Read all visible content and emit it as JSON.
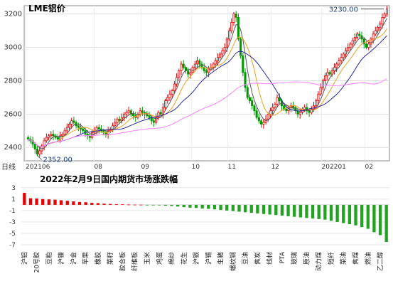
{
  "chart_data": [
    {
      "type": "candlestick",
      "title": "LME铝价",
      "frame_label": "日线",
      "x_tick_labels": [
        "202106",
        "08",
        "09",
        "10",
        "11",
        "12",
        "202201",
        "02"
      ],
      "y_ticks": [
        2400,
        2600,
        2800,
        3000,
        3200
      ],
      "ylim": [
        2320,
        3250
      ],
      "grid": true,
      "annotations": [
        {
          "label": "2352.00",
          "value": 2352,
          "anchor": "low"
        },
        {
          "label": "3230.00",
          "value": 3230,
          "anchor": "high"
        }
      ],
      "colors": {
        "up": "#e60000",
        "down": "#009900",
        "ma5": "#555555",
        "ma10": "#f0a020",
        "ma20": "#2a2aa0",
        "ma60": "#ff80ff"
      },
      "series_close": [
        2450,
        2440,
        2420,
        2390,
        2360,
        2380,
        2410,
        2440,
        2460,
        2470,
        2480,
        2470,
        2460,
        2450,
        2470,
        2480,
        2500,
        2520,
        2540,
        2560,
        2550,
        2530,
        2520,
        2510,
        2500,
        2480,
        2470,
        2460,
        2490,
        2500,
        2520,
        2510,
        2500,
        2490,
        2480,
        2500,
        2510,
        2530,
        2550,
        2570,
        2560,
        2580,
        2600,
        2610,
        2620,
        2600,
        2590,
        2580,
        2600,
        2620,
        2610,
        2600,
        2590,
        2580,
        2560,
        2550,
        2580,
        2610,
        2600,
        2640,
        2680,
        2700,
        2720,
        2740,
        2780,
        2820,
        2860,
        2900,
        2880,
        2860,
        2840,
        2850,
        2880,
        2900,
        2920,
        2900,
        2880,
        2860,
        2850,
        2870,
        2880,
        2900,
        2920,
        2940,
        2960,
        2980,
        3000,
        3050,
        3100,
        3150,
        3200,
        3180,
        3050,
        2950,
        2850,
        2760,
        2700,
        2680,
        2650,
        2620,
        2580,
        2560,
        2540,
        2550,
        2570,
        2600,
        2620,
        2640,
        2660,
        2700,
        2680,
        2650,
        2630,
        2620,
        2640,
        2650,
        2640,
        2620,
        2600,
        2610,
        2630,
        2640,
        2620,
        2610,
        2630,
        2650,
        2680,
        2720,
        2760,
        2800,
        2830,
        2850,
        2840,
        2860,
        2880,
        2900,
        2920,
        2940,
        2960,
        2980,
        3000,
        3020,
        3040,
        3060,
        3080,
        3070,
        3050,
        3020,
        3000,
        3020,
        3050,
        3080,
        3100,
        3120,
        3140,
        3180,
        3200,
        3230
      ],
      "volatility_note_free": true
    },
    {
      "type": "bar",
      "title": "2022年2月9日国内期货市场涨跌幅",
      "yticks": [
        3,
        1,
        -1,
        -3,
        -5,
        -7
      ],
      "ylim": [
        -7.5,
        3.6
      ],
      "grid": true,
      "colors": {
        "up": "#e60000",
        "down": "#22a322"
      },
      "visible_category_labels": [
        "沪铝",
        "20号胶",
        "豆粕",
        "沪镍",
        "沪金",
        "苹果",
        "橡胶",
        "菜籽",
        "胶合板",
        "纤维板",
        "玉米",
        "鸡蛋",
        "棉纱",
        "花生",
        "沪银",
        "沪锡",
        "生猪",
        "螺纹钢",
        "豆油",
        "焦炭",
        "线材",
        "PTA",
        "玻璃",
        "原油",
        "动力煤",
        "短纤",
        "菜油",
        "焦煤",
        "燃油",
        "乙二醇"
      ],
      "values": [
        2.1,
        1.15,
        1.1,
        1.0,
        0.95,
        0.9,
        0.8,
        0.7,
        0.6,
        0.5,
        0.45,
        0.35,
        0.3,
        0.2,
        0.15,
        0.1,
        0.08,
        0.05,
        0.03,
        0.02,
        -0.02,
        -0.05,
        -0.1,
        -0.15,
        -0.2,
        -0.3,
        -0.4,
        -0.5,
        -0.55,
        -0.65,
        -0.7,
        -0.8,
        -0.9,
        -1.0,
        -1.1,
        -1.2,
        -1.3,
        -1.4,
        -1.5,
        -1.6,
        -1.7,
        -1.8,
        -1.9,
        -2.0,
        -2.1,
        -2.2,
        -2.3,
        -2.4,
        -2.5,
        -2.6,
        -2.8,
        -3.0,
        -3.2,
        -3.4,
        -3.6,
        -3.9,
        -4.2,
        -4.8,
        -5.3,
        -6.5
      ]
    }
  ]
}
